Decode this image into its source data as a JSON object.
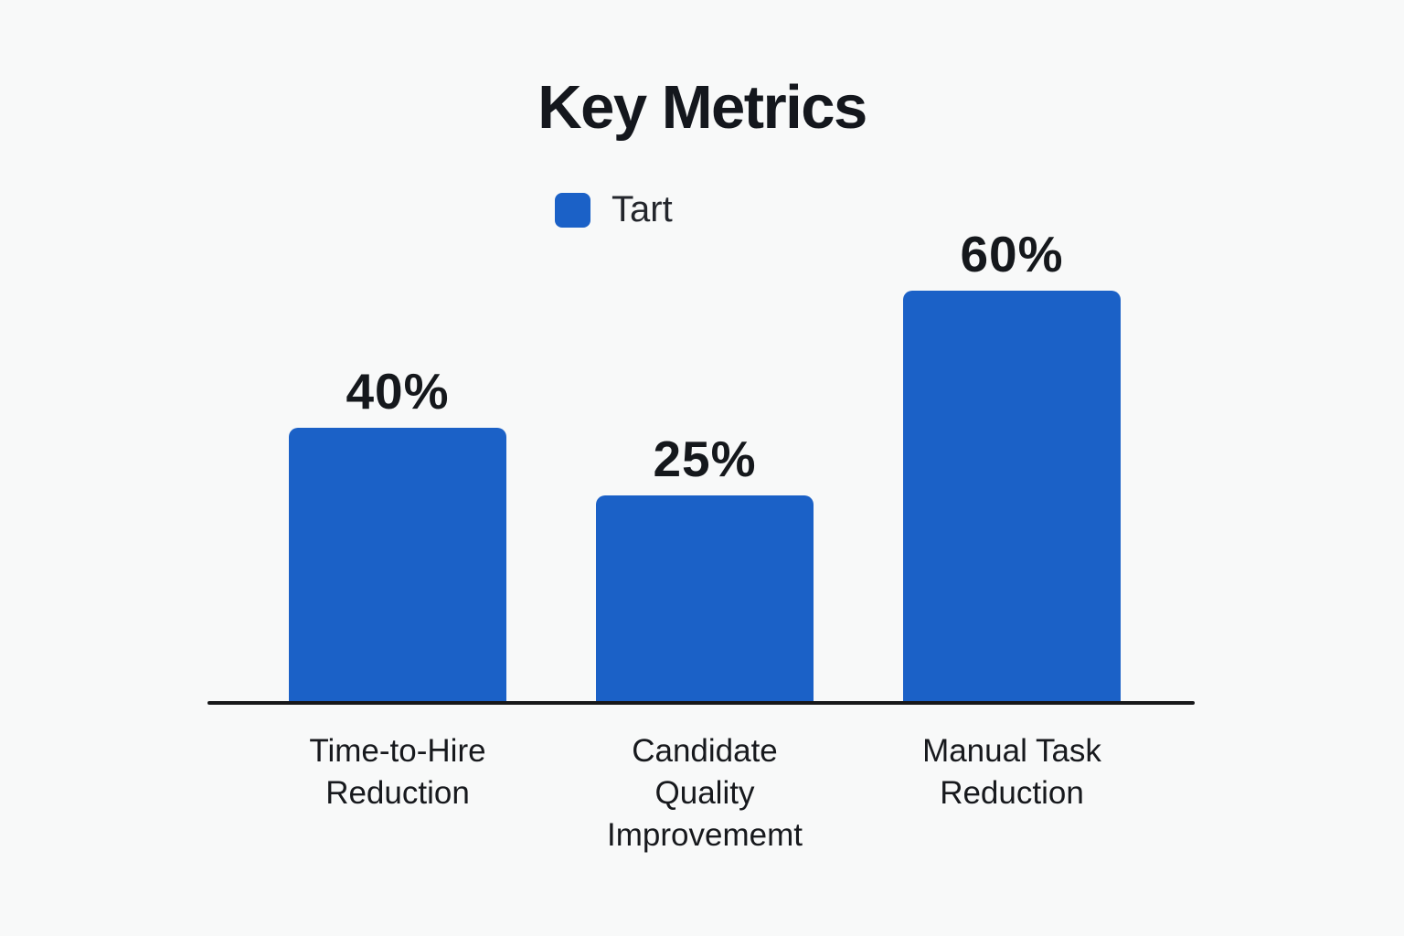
{
  "title": "Key Metrics",
  "legend": {
    "label": "Tart",
    "swatch_color": "#1b61c7"
  },
  "colors": {
    "bar": "#1b61c7",
    "background": "#f8f9f9",
    "axis": "#17181a",
    "text": "#15181c"
  },
  "chart_data": {
    "type": "bar",
    "title": "Key Metrics",
    "categories": [
      "Time-to-Hire Reduction",
      "Candidate Quality Improvememt",
      "Manual Task Reduction"
    ],
    "series": [
      {
        "name": "Tart",
        "values": [
          40,
          25,
          60
        ]
      }
    ],
    "value_labels": [
      "40%",
      "25%",
      "60%"
    ],
    "unit": "%",
    "xlabel": "",
    "ylabel": "",
    "ylim": [
      0,
      60
    ],
    "grid": false,
    "y_axis_ticks_visible": false,
    "legend_position": "top-center",
    "bar_color": "#1b61c7"
  },
  "bars": [
    {
      "value_label": "40%",
      "category": "Time-to-Hire Reduction",
      "line1": "Time-to-Hire",
      "line2": "Reduction",
      "line3": ""
    },
    {
      "value_label": "25%",
      "category": "Candidate Quality Improvememt",
      "line1": "Candidate",
      "line2": "Quality",
      "line3": "Improvememt"
    },
    {
      "value_label": "60%",
      "category": "Manual Task Reduction",
      "line1": "Manual Task",
      "line2": "Reduction",
      "line3": ""
    }
  ]
}
